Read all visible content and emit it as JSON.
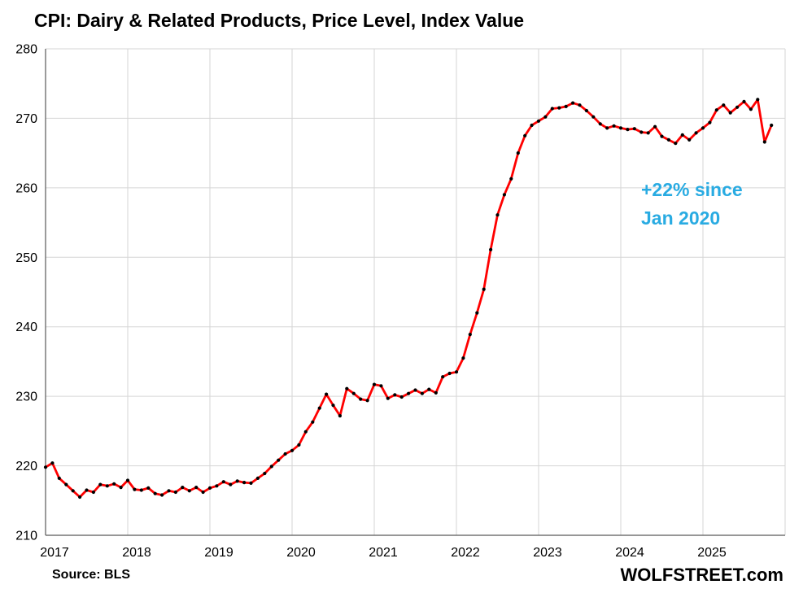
{
  "title": "CPI: Dairy & Related Products, Price Level, Index Value",
  "annotation": {
    "line1": "+22% since",
    "line2": "Jan 2020",
    "color": "#29ABE2"
  },
  "footer": {
    "source": "Source: BLS",
    "branding": "WOLFSTREET.com"
  },
  "chart_data": {
    "type": "line",
    "title": "CPI: Dairy & Related Products, Price Level, Index Value",
    "xlabel": "",
    "ylabel": "",
    "grid": true,
    "gridline_color": "#d6d6d6",
    "axis_color": "#595959",
    "x_axis": {
      "start": "2017-01",
      "span_years": 9,
      "tick_labels": [
        "2017",
        "2018",
        "2019",
        "2020",
        "2021",
        "2022",
        "2023",
        "2024",
        "2025"
      ]
    },
    "y_axis": {
      "min": 210,
      "max": 280,
      "tick_step": 10,
      "tick_labels": [
        "210",
        "220",
        "230",
        "240",
        "250",
        "260",
        "270",
        "280"
      ]
    },
    "series": [
      {
        "name": "CPI Dairy & Related Products, index value, monthly from Jan 2017",
        "color": "#FF0000",
        "marker_color": "#000000",
        "values": [
          219.8,
          220.4,
          218.2,
          217.3,
          216.4,
          215.5,
          216.5,
          216.2,
          217.3,
          217.1,
          217.4,
          216.9,
          217.9,
          216.6,
          216.5,
          216.8,
          216.0,
          215.8,
          216.4,
          216.2,
          216.9,
          216.4,
          216.9,
          216.2,
          216.8,
          217.1,
          217.7,
          217.3,
          217.8,
          217.6,
          217.5,
          218.2,
          218.9,
          219.9,
          220.8,
          221.7,
          222.2,
          223.0,
          224.9,
          226.3,
          228.3,
          230.3,
          228.7,
          227.2,
          231.1,
          230.4,
          229.6,
          229.4,
          231.7,
          231.5,
          229.7,
          230.2,
          229.9,
          230.4,
          230.9,
          230.4,
          231.0,
          230.5,
          232.8,
          233.3,
          233.5,
          235.5,
          238.9,
          242.0,
          245.4,
          251.1,
          256.1,
          259.0,
          261.3,
          265.0,
          267.5,
          269.0,
          269.6,
          270.2,
          271.4,
          271.5,
          271.7,
          272.2,
          271.9,
          271.1,
          270.2,
          269.2,
          268.6,
          268.9,
          268.6,
          268.4,
          268.5,
          268.0,
          267.9,
          268.8,
          267.4,
          266.9,
          266.4,
          267.6,
          266.9,
          267.9,
          268.6,
          269.4,
          271.2,
          271.9,
          270.8,
          271.6,
          272.4,
          271.3,
          272.7,
          266.6,
          269.0
        ]
      }
    ]
  }
}
